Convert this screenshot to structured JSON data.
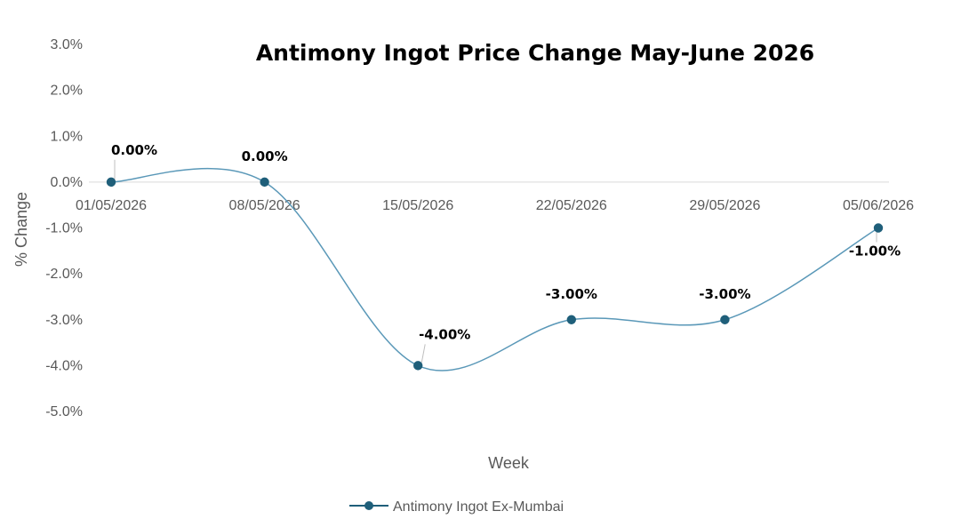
{
  "chart_data": {
    "type": "line",
    "title": "Antimony Ingot Price Change May-June 2026",
    "xlabel": "Week",
    "ylabel": "% Change",
    "categories": [
      "01/05/2026",
      "08/05/2026",
      "15/05/2026",
      "22/05/2026",
      "29/05/2026",
      "05/06/2026"
    ],
    "series": [
      {
        "name": "Antimony Ingot Ex-Mumbai",
        "values": [
          0.0,
          0.0,
          -4.0,
          -3.0,
          -3.0,
          -1.0
        ],
        "data_labels": [
          "0.00%",
          "0.00%",
          "-4.00%",
          "-3.00%",
          "-3.00%",
          "-1.00%"
        ],
        "color": "#1f5f7a"
      }
    ],
    "yticks": [
      "3.0%",
      "2.0%",
      "1.0%",
      "0.0%",
      "-1.0%",
      "-2.0%",
      "-3.0%",
      "-4.0%",
      "-5.0%"
    ],
    "ylim": [
      -5,
      3
    ],
    "smooth": true,
    "grid": false,
    "legend": "bottom"
  }
}
